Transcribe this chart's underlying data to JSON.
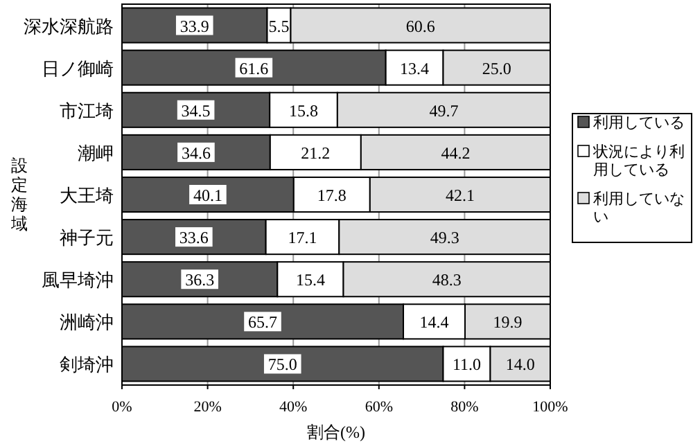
{
  "chart_data": {
    "type": "bar",
    "orientation": "horizontal",
    "stacked": true,
    "categories": [
      "深水深航路",
      "日ノ御崎",
      "市江埼",
      "潮岬",
      "大王埼",
      "神子元",
      "風早埼沖",
      "洲崎沖",
      "剣埼沖"
    ],
    "series": [
      {
        "name": "利用している",
        "color": "#555555",
        "values": [
          33.9,
          61.6,
          34.5,
          34.6,
          40.1,
          33.6,
          36.3,
          65.7,
          75.0
        ],
        "value_labels": [
          "33.9",
          "61.6",
          "34.5",
          "34.6",
          "40.1",
          "33.6",
          "36.3",
          "65.7",
          "75.0"
        ]
      },
      {
        "name": "状況により利用している",
        "color": "#ffffff",
        "values": [
          5.5,
          13.4,
          15.8,
          21.2,
          17.8,
          17.1,
          15.4,
          14.4,
          11.0
        ],
        "value_labels": [
          "5.5",
          "13.4",
          "15.8",
          "21.2",
          "17.8",
          "17.1",
          "15.4",
          "14.4",
          "11.0"
        ]
      },
      {
        "name": "利用していない",
        "color": "#dddddd",
        "values": [
          60.6,
          25.0,
          49.7,
          44.2,
          42.1,
          49.3,
          48.3,
          19.9,
          14.0
        ],
        "value_labels": [
          "60.6",
          "25.0",
          "49.7",
          "44.2",
          "42.1",
          "49.3",
          "48.3",
          "19.9",
          "14.0"
        ]
      }
    ],
    "xlim": [
      0,
      100
    ],
    "xticks": [
      {
        "value": 0,
        "label": "0%"
      },
      {
        "value": 20,
        "label": "20%"
      },
      {
        "value": 40,
        "label": "40%"
      },
      {
        "value": 60,
        "label": "60%"
      },
      {
        "value": 80,
        "label": "80%"
      },
      {
        "value": 100,
        "label": "100%"
      }
    ],
    "xlabel": "割合(%)",
    "ylabel": "設定海域",
    "grid": "x",
    "legend": "right"
  }
}
